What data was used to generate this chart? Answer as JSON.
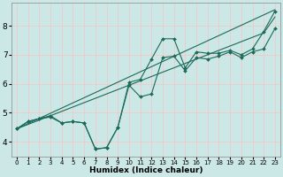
{
  "xlabel": "Humidex (Indice chaleur)",
  "bg_color": "#cce8e6",
  "grid_color": "#f0c8c8",
  "line_color": "#1a6b5a",
  "xlim": [
    -0.5,
    23.5
  ],
  "ylim": [
    3.5,
    8.8
  ],
  "yticks": [
    4,
    5,
    6,
    7,
    8
  ],
  "xticks": [
    0,
    1,
    2,
    3,
    4,
    5,
    6,
    7,
    8,
    9,
    10,
    11,
    12,
    13,
    14,
    15,
    16,
    17,
    18,
    19,
    20,
    21,
    22,
    23
  ],
  "lines": [
    {
      "x": [
        0,
        1,
        2,
        3,
        4,
        5,
        6,
        7,
        8,
        9,
        10,
        11,
        12,
        13,
        14,
        15,
        16,
        17,
        18,
        19,
        20,
        21,
        22,
        23
      ],
      "y": [
        4.45,
        4.7,
        4.8,
        4.9,
        4.65,
        4.7,
        4.65,
        3.75,
        3.8,
        4.5,
        6.05,
        6.15,
        6.85,
        7.55,
        7.55,
        6.55,
        7.1,
        7.05,
        7.05,
        7.15,
        7.0,
        7.2,
        7.8,
        8.5
      ],
      "marker": true
    },
    {
      "x": [
        0,
        1,
        2,
        3,
        4,
        5,
        6,
        7,
        8,
        9,
        10,
        11,
        12,
        13,
        14,
        15,
        16,
        17,
        18,
        19,
        20,
        21,
        22,
        23
      ],
      "y": [
        4.45,
        4.7,
        4.8,
        4.85,
        4.65,
        4.7,
        4.65,
        3.75,
        3.8,
        4.5,
        5.95,
        5.55,
        5.65,
        6.9,
        6.95,
        6.45,
        6.9,
        6.85,
        6.95,
        7.1,
        6.9,
        7.1,
        7.2,
        7.9
      ],
      "marker": true
    },
    {
      "x": [
        0,
        23
      ],
      "y": [
        4.45,
        8.55
      ],
      "marker": false
    },
    {
      "x": [
        0,
        22,
        23
      ],
      "y": [
        4.45,
        7.75,
        8.3
      ],
      "marker": false
    }
  ]
}
